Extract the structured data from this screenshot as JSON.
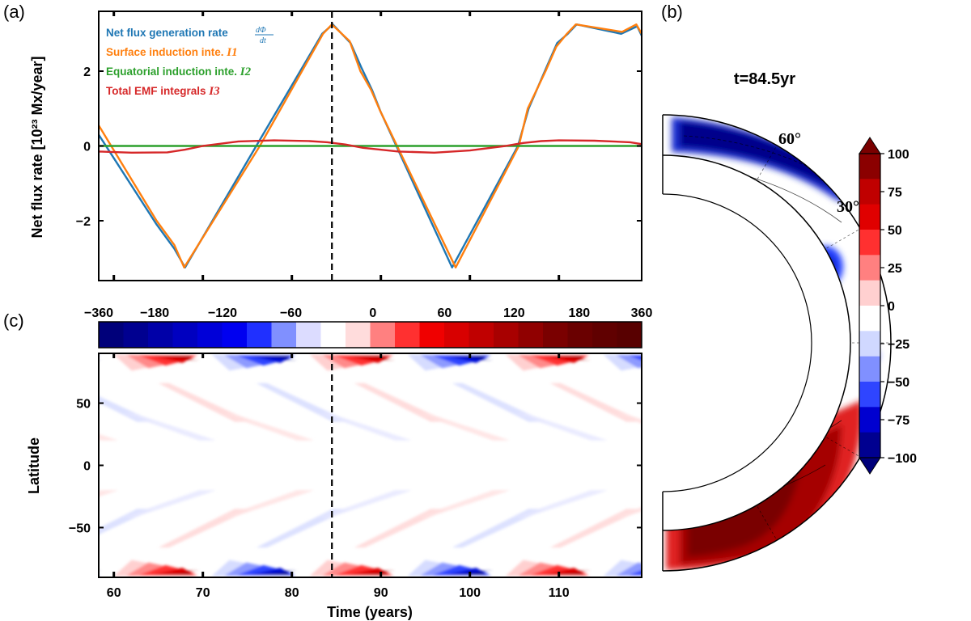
{
  "panel_labels": [
    "(a)",
    "(b)",
    "(c)"
  ],
  "chart_data": [
    {
      "panel": "(a)",
      "type": "line",
      "xlim": [
        58.3,
        119.3
      ],
      "ylim": [
        -3.6,
        3.6
      ],
      "ylabel": "Net flux rate [10²³ Mx/year]",
      "yticks": [
        -2,
        0,
        2
      ],
      "ytick_labels": [
        "−2",
        "0",
        "2"
      ],
      "vline_x": 84.5,
      "grid": false,
      "legend_position": "top-left",
      "cycle_period": 22.0,
      "series": [
        {
          "name": "Net flux generation rate",
          "label_math": "dΦ / dt",
          "color": "#1f77b4",
          "x": [
            58.3,
            64.8,
            66.8,
            68.0,
            76.0,
            83.4,
            84.6,
            86.6,
            87.8,
            89.0,
            90.0,
            98.0,
            105.4,
            106.6,
            108.6,
            109.8,
            111.0,
            112.0,
            117.0,
            118.8,
            119.3
          ],
          "y": [
            0.3,
            -2.1,
            -2.75,
            -3.25,
            0.0,
            3.0,
            3.25,
            2.75,
            2.1,
            1.5,
            0.9,
            -3.25,
            0.0,
            1.0,
            2.1,
            2.75,
            3.0,
            3.25,
            3.0,
            3.2,
            2.95
          ]
        },
        {
          "name": "Surface induction inte.",
          "label_math": "I1",
          "color": "#ff7f0e",
          "x": [
            58.3,
            64.8,
            66.8,
            67.9,
            76.4,
            83.5,
            84.5,
            86.5,
            87.7,
            88.9,
            89.9,
            98.4,
            105.5,
            106.5,
            108.5,
            109.7,
            110.9,
            111.9,
            117.1,
            118.7,
            119.3
          ],
          "y": [
            0.55,
            -2.0,
            -2.65,
            -3.25,
            0.0,
            3.0,
            3.25,
            2.8,
            2.0,
            1.5,
            0.95,
            -3.25,
            0.0,
            1.0,
            2.0,
            2.65,
            3.0,
            3.25,
            3.05,
            3.25,
            3.0
          ]
        },
        {
          "name": "Equatorial induction inte.",
          "label_math": "I2",
          "color": "#2ca02c",
          "x": [
            58.3,
            119.3
          ],
          "y": [
            0.0,
            0.0
          ]
        },
        {
          "name": "Total EMF integrals",
          "label_math": "I3",
          "color": "#d62728",
          "x": [
            58.3,
            62.0,
            66.0,
            68.0,
            70.0,
            74.0,
            78.0,
            82.0,
            84.0,
            86.0,
            88.0,
            92.0,
            96.0,
            100.0,
            104.0,
            106.0,
            108.0,
            110.0,
            114.0,
            118.0,
            119.3
          ],
          "y": [
            -0.15,
            -0.18,
            -0.17,
            -0.1,
            0.0,
            0.12,
            0.15,
            0.13,
            0.1,
            0.04,
            -0.05,
            -0.15,
            -0.18,
            -0.12,
            0.0,
            0.08,
            0.13,
            0.15,
            0.14,
            0.1,
            0.05
          ]
        }
      ]
    },
    {
      "panel": "(c)",
      "type": "heatmap",
      "xlabel": "Time (years)",
      "ylabel": "Latitude",
      "xlim": [
        58.3,
        119.3
      ],
      "ylim": [
        -90,
        90
      ],
      "xticks": [
        60,
        70,
        80,
        90,
        100,
        110
      ],
      "yticks": [
        -50,
        0,
        50
      ],
      "ytick_labels": [
        "−50",
        "0",
        "50"
      ],
      "vline_x": 84.5,
      "cycle_period": 22.0,
      "colorbar": {
        "position": "top",
        "ticks": [
          "−360",
          "−180",
          "−120",
          "−60",
          "0",
          "60",
          "120",
          "180",
          "360"
        ],
        "n_levels": 22
      },
      "features": [
        {
          "lat_center": 84,
          "t_start": 60.0,
          "t_end": 70.0,
          "peak": 240,
          "description": "polar band"
        },
        {
          "lat_center": 84,
          "t_start": 71.0,
          "t_end": 81.0,
          "peak": -240
        },
        {
          "lat_center": 84,
          "t_start": 82.0,
          "t_end": 92.0,
          "peak": 240
        },
        {
          "lat_center": 84,
          "t_start": 93.0,
          "t_end": 103.0,
          "peak": -240
        },
        {
          "lat_center": 84,
          "t_start": 104.0,
          "t_end": 114.0,
          "peak": 240
        },
        {
          "lat_center": 84,
          "t_start": 115.0,
          "t_end": 125.0,
          "peak": -240
        },
        {
          "lat_center": -84,
          "t_start": 60.0,
          "t_end": 70.0,
          "peak": 240
        },
        {
          "lat_center": -84,
          "t_start": 71.0,
          "t_end": 81.0,
          "peak": -240
        },
        {
          "lat_center": -84,
          "t_start": 82.0,
          "t_end": 92.0,
          "peak": 240
        },
        {
          "lat_center": -84,
          "t_start": 93.0,
          "t_end": 103.0,
          "peak": -240
        },
        {
          "lat_center": -84,
          "t_start": 104.0,
          "t_end": 114.0,
          "peak": 240
        },
        {
          "lat_center": -84,
          "t_start": 115.0,
          "t_end": 125.0,
          "peak": -240
        }
      ]
    },
    {
      "panel": "(b)",
      "type": "heatmap",
      "title": "t=84.5yr",
      "angle_labels": [
        "60°",
        "30°"
      ],
      "colorbar": {
        "position": "right",
        "ticks": [
          "100",
          "75",
          "50",
          "25",
          "0",
          "−25",
          "−50",
          "−75",
          "−100"
        ],
        "vmin": -100,
        "vmax": 100
      }
    }
  ]
}
